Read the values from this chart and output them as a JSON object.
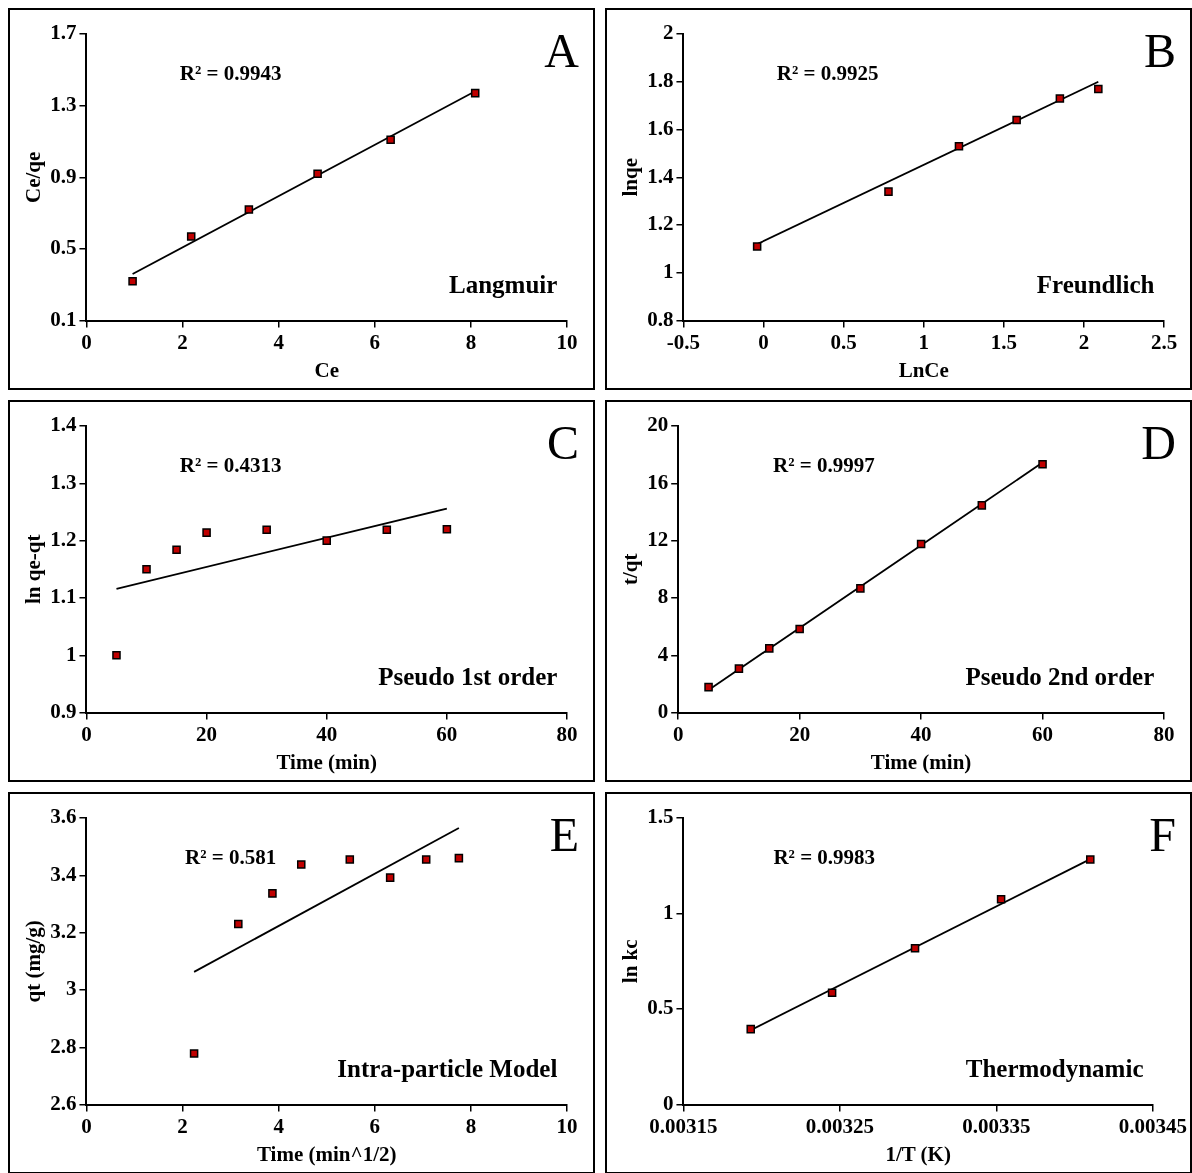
{
  "chart_data": [
    {
      "type": "scatter",
      "title": "A",
      "xlabel": "Ce",
      "ylabel": "Ce/qe",
      "xlim": [
        0,
        10
      ],
      "xticks": [
        0,
        2,
        4,
        6,
        8,
        10
      ],
      "ylim": [
        0.1,
        1.7
      ],
      "yticks": [
        0.1,
        0.5,
        0.9,
        1.3,
        1.7
      ],
      "annotations": [
        "R² = 0.9943",
        "Langmuir"
      ],
      "series": [
        {
          "type": "scatter",
          "marker": "square",
          "color": "#c00000",
          "x": [
            0.96,
            2.18,
            3.38,
            4.81,
            6.33,
            8.09
          ],
          "values": [
            0.32,
            0.57,
            0.72,
            0.92,
            1.11,
            1.37
          ]
        },
        {
          "type": "line",
          "marker": "none",
          "color": "#000000",
          "x": [
            0.96,
            8.09
          ],
          "values": [
            0.36,
            1.38
          ]
        }
      ]
    },
    {
      "type": "scatter",
      "title": "B",
      "xlabel": "LnCe",
      "ylabel": "lnqe",
      "xlim": [
        -0.5,
        2.5
      ],
      "xticks": [
        -0.5,
        0,
        0.5,
        1,
        1.5,
        2,
        2.5
      ],
      "ylim": [
        0.8,
        2
      ],
      "yticks": [
        0.8,
        1,
        1.2,
        1.4,
        1.6,
        1.8,
        2
      ],
      "annotations": [
        "R² = 0.9925",
        "Freundlich"
      ],
      "series": [
        {
          "type": "scatter",
          "marker": "square",
          "color": "#c00000",
          "x": [
            -0.04,
            0.78,
            1.22,
            1.58,
            1.85,
            2.09
          ],
          "values": [
            1.11,
            1.34,
            1.53,
            1.64,
            1.73,
            1.77
          ]
        },
        {
          "type": "line",
          "marker": "none",
          "color": "#000000",
          "x": [
            -0.04,
            2.09
          ],
          "values": [
            1.12,
            1.8
          ]
        }
      ]
    },
    {
      "type": "scatter",
      "title": "C",
      "xlabel": "Time (min)",
      "ylabel": "ln qe-qt",
      "xlim": [
        0,
        80
      ],
      "xticks": [
        0,
        20,
        40,
        60,
        80
      ],
      "ylim": [
        0.9,
        1.4
      ],
      "yticks": [
        0.9,
        1,
        1.1,
        1.2,
        1.3,
        1.4
      ],
      "annotations": [
        "R² = 0.4313",
        "Pseudo 1st order"
      ],
      "series": [
        {
          "type": "scatter",
          "marker": "square",
          "color": "#c00000",
          "x": [
            5,
            10,
            15,
            20,
            30,
            40,
            50,
            60
          ],
          "values": [
            1.0,
            1.15,
            1.184,
            1.214,
            1.219,
            1.2,
            1.219,
            1.22
          ]
        },
        {
          "type": "line",
          "marker": "none",
          "color": "#000000",
          "x": [
            5,
            60
          ],
          "values": [
            1.116,
            1.256
          ]
        }
      ]
    },
    {
      "type": "scatter",
      "title": "D",
      "xlabel": "Time (min)",
      "ylabel": "t/qt",
      "xlim": [
        0,
        80
      ],
      "xticks": [
        0,
        20,
        40,
        60,
        80
      ],
      "ylim": [
        0,
        20
      ],
      "yticks": [
        0,
        4,
        8,
        12,
        16,
        20
      ],
      "annotations": [
        "R² = 0.9997",
        "Pseudo 2nd order"
      ],
      "series": [
        {
          "type": "scatter",
          "marker": "square",
          "color": "#c00000",
          "x": [
            5,
            10,
            15,
            20,
            30,
            40,
            50,
            60
          ],
          "values": [
            1.78,
            3.07,
            4.48,
            5.83,
            8.67,
            11.76,
            14.46,
            17.33
          ]
        },
        {
          "type": "line",
          "marker": "none",
          "color": "#000000",
          "x": [
            5,
            60
          ],
          "values": [
            1.58,
            17.45
          ]
        }
      ]
    },
    {
      "type": "scatter",
      "title": "E",
      "xlabel": "Time (min^1/2)",
      "ylabel": "qt (mg/g)",
      "xlim": [
        0,
        10
      ],
      "xticks": [
        0,
        2,
        4,
        6,
        8,
        10
      ],
      "ylim": [
        2.6,
        3.6
      ],
      "yticks": [
        2.6,
        2.8,
        3,
        3.2,
        3.4,
        3.6
      ],
      "annotations": [
        "R² = 0.581",
        "Intra-particle Model"
      ],
      "series": [
        {
          "type": "scatter",
          "marker": "square",
          "color": "#c00000",
          "x": [
            2.24,
            3.16,
            3.87,
            4.47,
            5.48,
            6.32,
            7.07,
            7.75
          ],
          "values": [
            2.778,
            3.23,
            3.337,
            3.438,
            3.455,
            3.392,
            3.455,
            3.46
          ]
        },
        {
          "type": "line",
          "marker": "none",
          "color": "#000000",
          "x": [
            2.24,
            7.75
          ],
          "values": [
            3.063,
            3.565
          ]
        }
      ]
    },
    {
      "type": "scatter",
      "title": "F",
      "xlabel": "1/T (K)",
      "ylabel": "ln kc",
      "xlim": [
        0.00315,
        0.00345
      ],
      "xticks": [
        0.00315,
        0.00325,
        0.00335,
        0.00345
      ],
      "ylim": [
        0,
        1.5
      ],
      "yticks": [
        0,
        0.5,
        1,
        1.5
      ],
      "annotations": [
        "R² = 0.9983",
        "Thermodynamic"
      ],
      "series": [
        {
          "type": "scatter",
          "marker": "square",
          "color": "#c00000",
          "x": [
            0.003193,
            0.003245,
            0.003298,
            0.003353,
            0.00341
          ],
          "values": [
            0.395,
            0.585,
            0.818,
            1.075,
            1.283
          ]
        },
        {
          "type": "line",
          "marker": "none",
          "color": "#000000",
          "x": [
            0.003193,
            0.00341
          ],
          "values": [
            0.39,
            1.285
          ]
        }
      ]
    }
  ]
}
